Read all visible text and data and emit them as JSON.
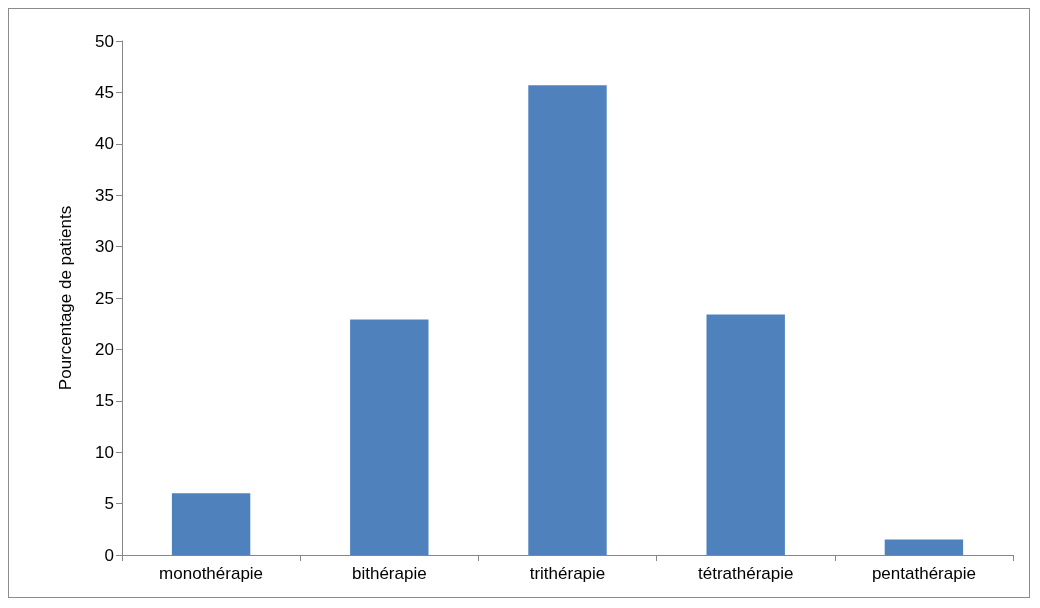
{
  "chart_data": {
    "type": "bar",
    "ylabel": "Pourcentage de patients",
    "categories": [
      "monothérapie",
      "bithérapie",
      "trithérapie",
      "tétrathérapie",
      "pentathérapie"
    ],
    "values": [
      6.0,
      22.9,
      45.7,
      23.4,
      1.5
    ],
    "color": "#4f81bd",
    "ylim": [
      0,
      50
    ],
    "yticks": [
      0,
      5,
      10,
      15,
      20,
      25,
      30,
      35,
      40,
      45,
      50
    ],
    "grid": false
  }
}
